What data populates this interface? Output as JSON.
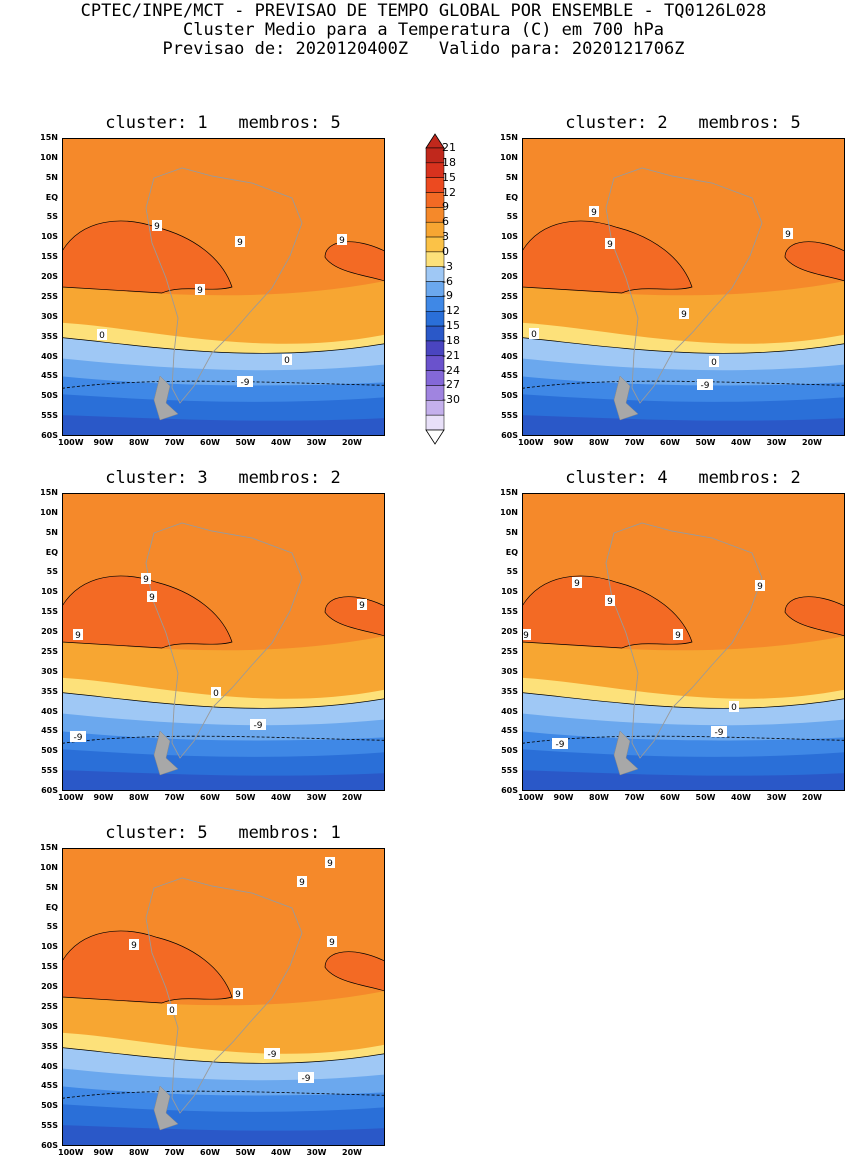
{
  "header": {
    "line1": "CPTEC/INPE/MCT - PREVISAO DE TEMPO GLOBAL POR ENSEMBLE - TQ0126L028",
    "line2": "Cluster Medio para a Temperatura (C) em 700 hPa",
    "line3": "Previsao de: 2020120400Z   Valido para: 2020121706Z"
  },
  "lat_labels": [
    "15N",
    "10N",
    "5N",
    "EQ",
    "5S",
    "10S",
    "15S",
    "20S",
    "25S",
    "30S",
    "35S",
    "40S",
    "45S",
    "50S",
    "55S",
    "60S"
  ],
  "lon_labels": [
    "100W",
    "90W",
    "80W",
    "70W",
    "60W",
    "50W",
    "40W",
    "30W",
    "20W"
  ],
  "colorbar": {
    "levels": [
      "21",
      "18",
      "15",
      "12",
      "9",
      "6",
      "3",
      "0",
      "-3",
      "-6",
      "-9",
      "-12",
      "-15",
      "-18",
      "-21",
      "-24",
      "-27",
      "-30"
    ],
    "colors": [
      "#c0281c",
      "#d8321e",
      "#ec4a20",
      "#f36a24",
      "#f5892a",
      "#f7a632",
      "#fbc247",
      "#fde17a",
      "#9fc8f5",
      "#6ba8ee",
      "#3f88e6",
      "#2a6fd8",
      "#2a58c8",
      "#4a45c0",
      "#6a52cc",
      "#8468d8",
      "#a084e0",
      "#c4b0ec",
      "#e8e0f8"
    ]
  },
  "panels": [
    {
      "title": "cluster: 1   membros: 5",
      "labels": [
        "9",
        "9",
        "9",
        "9",
        "0",
        "0",
        "-9"
      ]
    },
    {
      "title": "cluster: 2   membros: 5",
      "labels": [
        "9",
        "9",
        "9",
        "9",
        "0",
        "0",
        "-9"
      ]
    },
    {
      "title": "cluster: 3   membros: 2",
      "labels": [
        "9",
        "9",
        "9",
        "9",
        "0",
        "-9",
        "-9"
      ]
    },
    {
      "title": "cluster: 4   membros: 2",
      "labels": [
        "9",
        "9",
        "9",
        "9",
        "9",
        "0",
        "-9",
        "-9"
      ]
    },
    {
      "title": "cluster: 5   membros: 1",
      "labels": [
        "9",
        "9",
        "9",
        "9",
        "9",
        "0",
        "-9",
        "-9"
      ]
    }
  ]
}
